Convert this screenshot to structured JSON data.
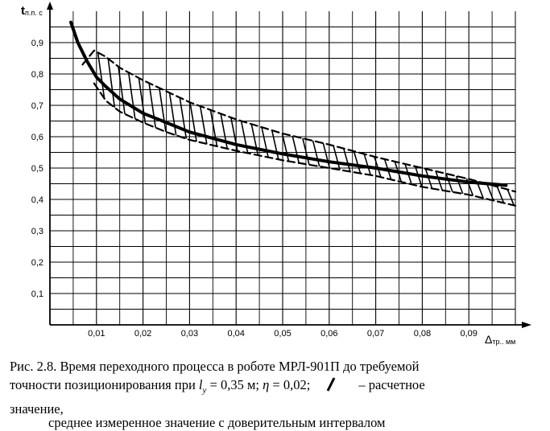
{
  "chart_data": {
    "type": "line",
    "ylabel": "t",
    "ylabel_sub": "п.п. с",
    "xlabel": "Δ",
    "xlabel_sub": "тр.. мм",
    "xlim": [
      0,
      0.1
    ],
    "ylim": [
      0,
      1.0
    ],
    "x_ticks": [
      "0,01",
      "0,02",
      "0,03",
      "0,04",
      "0,05",
      "0,06",
      "0,07",
      "0,08",
      "0,09"
    ],
    "y_ticks": [
      "0,1",
      "0,2",
      "0,3",
      "0,4",
      "0,5",
      "0,6",
      "0,7",
      "0,8",
      "0,9"
    ],
    "grid": true,
    "series": [
      {
        "role": "calculated",
        "style": "solid-thick",
        "x": [
          0.0045,
          0.006,
          0.008,
          0.01,
          0.012,
          0.015,
          0.02,
          0.025,
          0.03,
          0.04,
          0.05,
          0.06,
          0.07,
          0.08,
          0.09,
          0.098
        ],
        "y": [
          0.965,
          0.9,
          0.84,
          0.79,
          0.76,
          0.72,
          0.675,
          0.645,
          0.615,
          0.575,
          0.545,
          0.52,
          0.5,
          0.475,
          0.455,
          0.445
        ]
      },
      {
        "role": "measured-upper",
        "style": "dashed",
        "x": [
          0.007,
          0.0095,
          0.012,
          0.015,
          0.02,
          0.03,
          0.04,
          0.05,
          0.06,
          0.07,
          0.08,
          0.09,
          0.1
        ],
        "y": [
          0.83,
          0.875,
          0.855,
          0.82,
          0.78,
          0.71,
          0.655,
          0.61,
          0.575,
          0.535,
          0.5,
          0.465,
          0.425
        ]
      },
      {
        "role": "measured-lower",
        "style": "dashed",
        "x": [
          0.0095,
          0.012,
          0.015,
          0.02,
          0.025,
          0.03,
          0.04,
          0.05,
          0.06,
          0.07,
          0.08,
          0.09,
          0.1
        ],
        "y": [
          0.77,
          0.715,
          0.68,
          0.645,
          0.615,
          0.59,
          0.555,
          0.525,
          0.5,
          0.475,
          0.44,
          0.415,
          0.38
        ]
      }
    ]
  },
  "caption": {
    "line1": "Рис. 2.8. Время переходного процесса в роботе МРЛ-901П до требуемой",
    "line2_a": "точности позиционирования при ",
    "line2_l": "l",
    "line2_lsub": "y",
    "line2_b": " = 0,35 м; ",
    "line2_eta": "η",
    "line2_c": " = 0,02;",
    "line2_d": "– расчетное",
    "line3": "значение,",
    "line4": "среднее измеренное значение с доверительным интервалом"
  }
}
